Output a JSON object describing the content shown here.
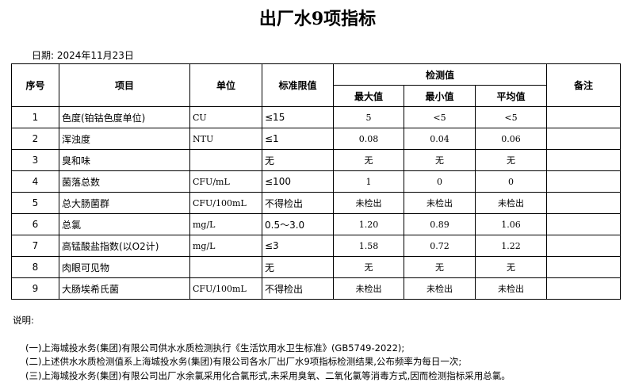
{
  "title": "出厂水9项指标",
  "date": "日期: 2024年11月23日",
  "headers": {
    "no": "序号",
    "item": "项目",
    "unit": "单位",
    "limit": "标准限值",
    "test": "检测值",
    "max": "最大值",
    "min": "最小值",
    "avg": "平均值",
    "remark": "备注"
  },
  "rows": [
    {
      "no": "1",
      "item": "色度(铂钴色度单位)",
      "unit": "CU",
      "limit": "≤15",
      "max": "5",
      "min": "<5",
      "avg": "<5"
    },
    {
      "no": "2",
      "item": "浑浊度",
      "unit": "NTU",
      "limit": "≤1",
      "max": "0.08",
      "min": "0.04",
      "avg": "0.06"
    },
    {
      "no": "3",
      "item": "臭和味",
      "unit": "",
      "limit": "无",
      "max": "无",
      "min": "无",
      "avg": "无"
    },
    {
      "no": "4",
      "item": "菌落总数",
      "unit": "CFU/mL",
      "limit": "≤100",
      "max": "1",
      "min": "0",
      "avg": "0"
    },
    {
      "no": "5",
      "item": "总大肠菌群",
      "unit": "CFU/100mL",
      "limit": "不得检出",
      "max": "未检出",
      "min": "未检出",
      "avg": "未检出"
    },
    {
      "no": "6",
      "item": "总氯",
      "unit": "mg/L",
      "limit": "0.5～3.0",
      "max": "1.20",
      "min": "0.89",
      "avg": "1.06"
    },
    {
      "no": "7",
      "item": "高锰酸盐指数(以O2计)",
      "unit": "mg/L",
      "limit": "≤3",
      "max": "1.58",
      "min": "0.72",
      "avg": "1.22"
    },
    {
      "no": "8",
      "item": "肉眼可见物",
      "unit": "",
      "limit": "无",
      "max": "无",
      "min": "无",
      "avg": "无"
    },
    {
      "no": "9",
      "item": "大肠埃希氏菌",
      "unit": "CFU/100mL",
      "limit": "不得检出",
      "max": "未检出",
      "min": "未检出",
      "avg": "未检出"
    }
  ],
  "notes": {
    "label": "说明:",
    "items": [
      "(一)上海城投水务(集团)有限公司供水水质检测执行《生活饮用水卫生标准》(GB5749-2022);",
      "(二)上述供水水质检测值系上海城投水务(集团)有限公司各水厂出厂水9项指标检测结果,公布频率为每日一次;",
      "(三)上海城投水务(集团)有限公司出厂水余氯采用化合氯形式,未采用臭氧、二氧化氯等消毒方式,因而检测指标采用总氯。"
    ]
  }
}
